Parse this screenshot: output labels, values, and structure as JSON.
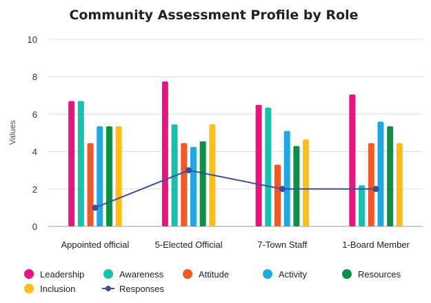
{
  "chart_data": {
    "type": "bar",
    "title": "Community Assessment Profile by Role",
    "xlabel": "",
    "ylabel": "Values",
    "ylim": [
      0,
      10
    ],
    "yticks": [
      0,
      2,
      4,
      6,
      8,
      10
    ],
    "grid": true,
    "legend_position": "bottom",
    "categories": [
      "Appointed official",
      "5-Elected Official",
      "7-Town Staff",
      "1-Board Member"
    ],
    "series": [
      {
        "name": "Leadership",
        "type": "bar",
        "color": "#e6157f",
        "values": [
          6.7,
          7.75,
          6.5,
          7.05
        ]
      },
      {
        "name": "Awareness",
        "type": "bar",
        "color": "#1bbfaf",
        "values": [
          6.7,
          5.45,
          6.35,
          2.2
        ]
      },
      {
        "name": "Attitude",
        "type": "bar",
        "color": "#f1592a",
        "values": [
          4.45,
          4.45,
          3.3,
          4.45
        ]
      },
      {
        "name": "Activity",
        "type": "bar",
        "color": "#22a7e0",
        "values": [
          5.35,
          4.25,
          5.1,
          5.6
        ]
      },
      {
        "name": "Resources",
        "type": "bar",
        "color": "#0f8f45",
        "values": [
          5.35,
          4.55,
          4.3,
          5.35
        ]
      },
      {
        "name": "Inclusion",
        "type": "bar",
        "color": "#fbbd19",
        "values": [
          5.35,
          5.45,
          4.65,
          4.45
        ]
      },
      {
        "name": "Responses",
        "type": "line",
        "color": "#3d4e9c",
        "values": [
          1,
          3,
          2,
          2
        ]
      }
    ]
  }
}
